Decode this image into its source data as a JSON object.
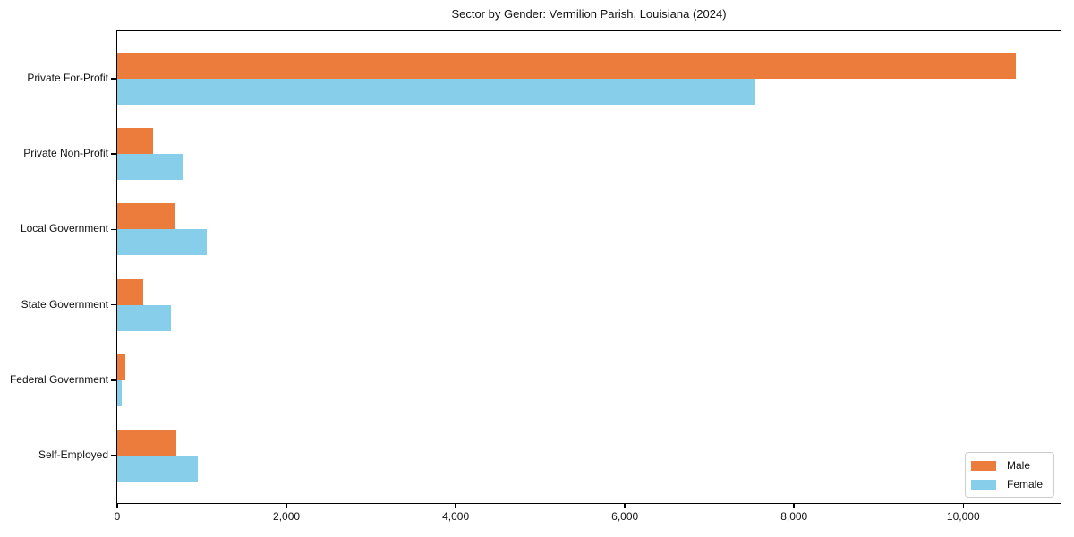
{
  "chart_data": {
    "type": "bar",
    "orientation": "horizontal",
    "title": "Sector by Gender: Vermilion Parish, Louisiana (2024)",
    "categories": [
      "Private For-Profit",
      "Private Non-Profit",
      "Local Government",
      "State Government",
      "Federal Government",
      "Self-Employed"
    ],
    "series": [
      {
        "name": "Male",
        "color": "#EB7C3B",
        "values": [
          10620,
          420,
          680,
          310,
          90,
          700
        ]
      },
      {
        "name": "Female",
        "color": "#87CEEB",
        "values": [
          7540,
          775,
          1060,
          630,
          50,
          955
        ]
      }
    ],
    "xlim": [
      0,
      11150
    ],
    "x_ticks": [
      0,
      2000,
      4000,
      6000,
      8000,
      10000
    ],
    "x_tick_labels": [
      "0",
      "2,000",
      "4,000",
      "6,000",
      "8,000",
      "10,000"
    ],
    "xlabel": "",
    "ylabel": "",
    "grid": false,
    "legend": {
      "position": "lower right",
      "items": [
        "Male",
        "Female"
      ]
    },
    "spine_color": "#000000"
  }
}
